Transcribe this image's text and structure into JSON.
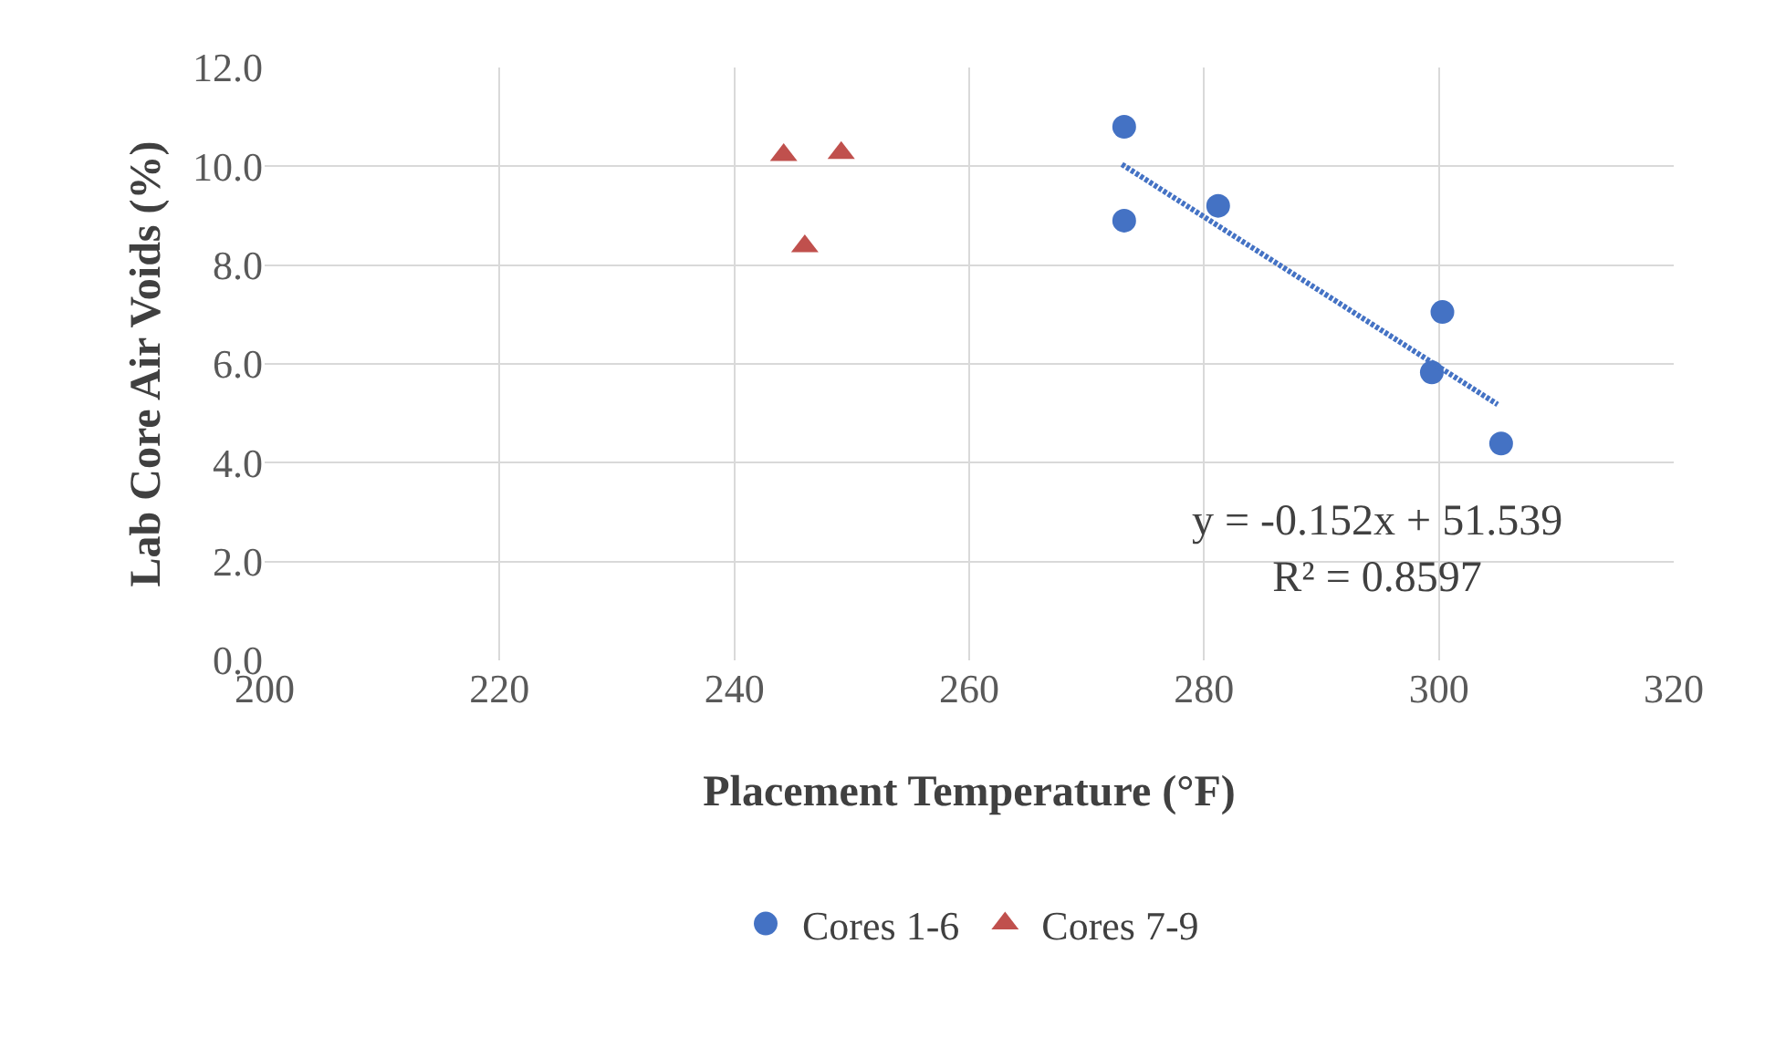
{
  "chart_data": {
    "type": "scatter",
    "xlabel": "Placement Temperature (°F)",
    "ylabel": "Lab Core Air Voids (%)",
    "xlim": [
      200,
      320
    ],
    "xticks": [
      200,
      220,
      240,
      260,
      280,
      300,
      320
    ],
    "ylim": [
      0,
      12
    ],
    "yticks": [
      {
        "value": 0,
        "label": "0.0"
      },
      {
        "value": 2,
        "label": "2.0"
      },
      {
        "value": 4,
        "label": "4.0"
      },
      {
        "value": 6,
        "label": "6.0"
      },
      {
        "value": 8,
        "label": "8.0"
      },
      {
        "value": 10,
        "label": "10.0"
      },
      {
        "value": 12,
        "label": "12.0"
      }
    ],
    "grid": true,
    "legend": "bottom",
    "series": [
      {
        "name": "Cores 1-6",
        "color": "#4472c4",
        "marker": "circle",
        "x": [
          273.2,
          273.2,
          281.2,
          300.3,
          299.4,
          305.3
        ],
        "values": [
          10.8,
          8.9,
          9.2,
          7.05,
          5.83,
          4.39
        ]
      },
      {
        "name": "Cores 7-9",
        "color": "#c0504d",
        "marker": "triangle",
        "x": [
          244.2,
          249.1,
          246.0
        ],
        "values": [
          10.23,
          10.27,
          8.38
        ]
      },
      {
        "type": "line",
        "color": "#4472c4",
        "line_style": "dotted",
        "marker": "none",
        "x": [
          273,
          305
        ],
        "values": [
          10.04,
          5.18
        ]
      }
    ],
    "annotations": [
      "y = -0.152x + 51.539\nR² = 0.8597"
    ]
  }
}
